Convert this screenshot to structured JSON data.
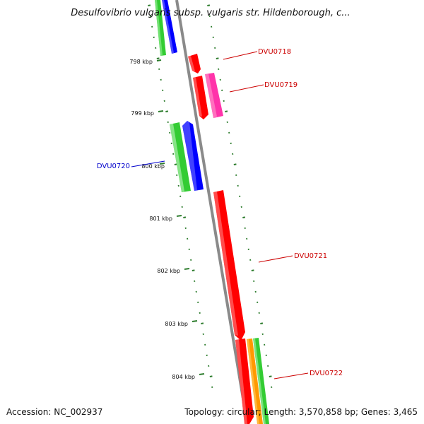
{
  "map": {
    "title": "Desulfovibrio vulgaris subsp. vulgaris str. Hildenborough, c...",
    "accession": "Accession: NC_002937",
    "topology": "Topology: circular; Length: 3,570,858 bp; Genes: 3,465",
    "ruler": [
      {
        "label": "798 kbp"
      },
      {
        "label": "799 kbp"
      },
      {
        "label": "800 kbp"
      },
      {
        "label": "801 kbp"
      },
      {
        "label": "802 kbp"
      },
      {
        "label": "803 kbp"
      },
      {
        "label": "804 kbp"
      }
    ],
    "gene_labels": [
      {
        "text": "DVU0718",
        "color": "#cc0000"
      },
      {
        "text": "DVU0719",
        "color": "#cc0000"
      },
      {
        "text": "DVU0720",
        "color": "#0000cc"
      },
      {
        "text": "DVU0721",
        "color": "#cc0000"
      },
      {
        "text": "DVU0722",
        "color": "#cc0000"
      }
    ],
    "colors": {
      "backbone": "#8a8a8a",
      "tick_marks": "#2e7d2e",
      "cds_red": "#ff0000",
      "cds_magenta": "#ff33aa",
      "cds_blue": "#0000ff",
      "cds_green": "#33cc33",
      "cds_orange": "#ff9900"
    }
  }
}
